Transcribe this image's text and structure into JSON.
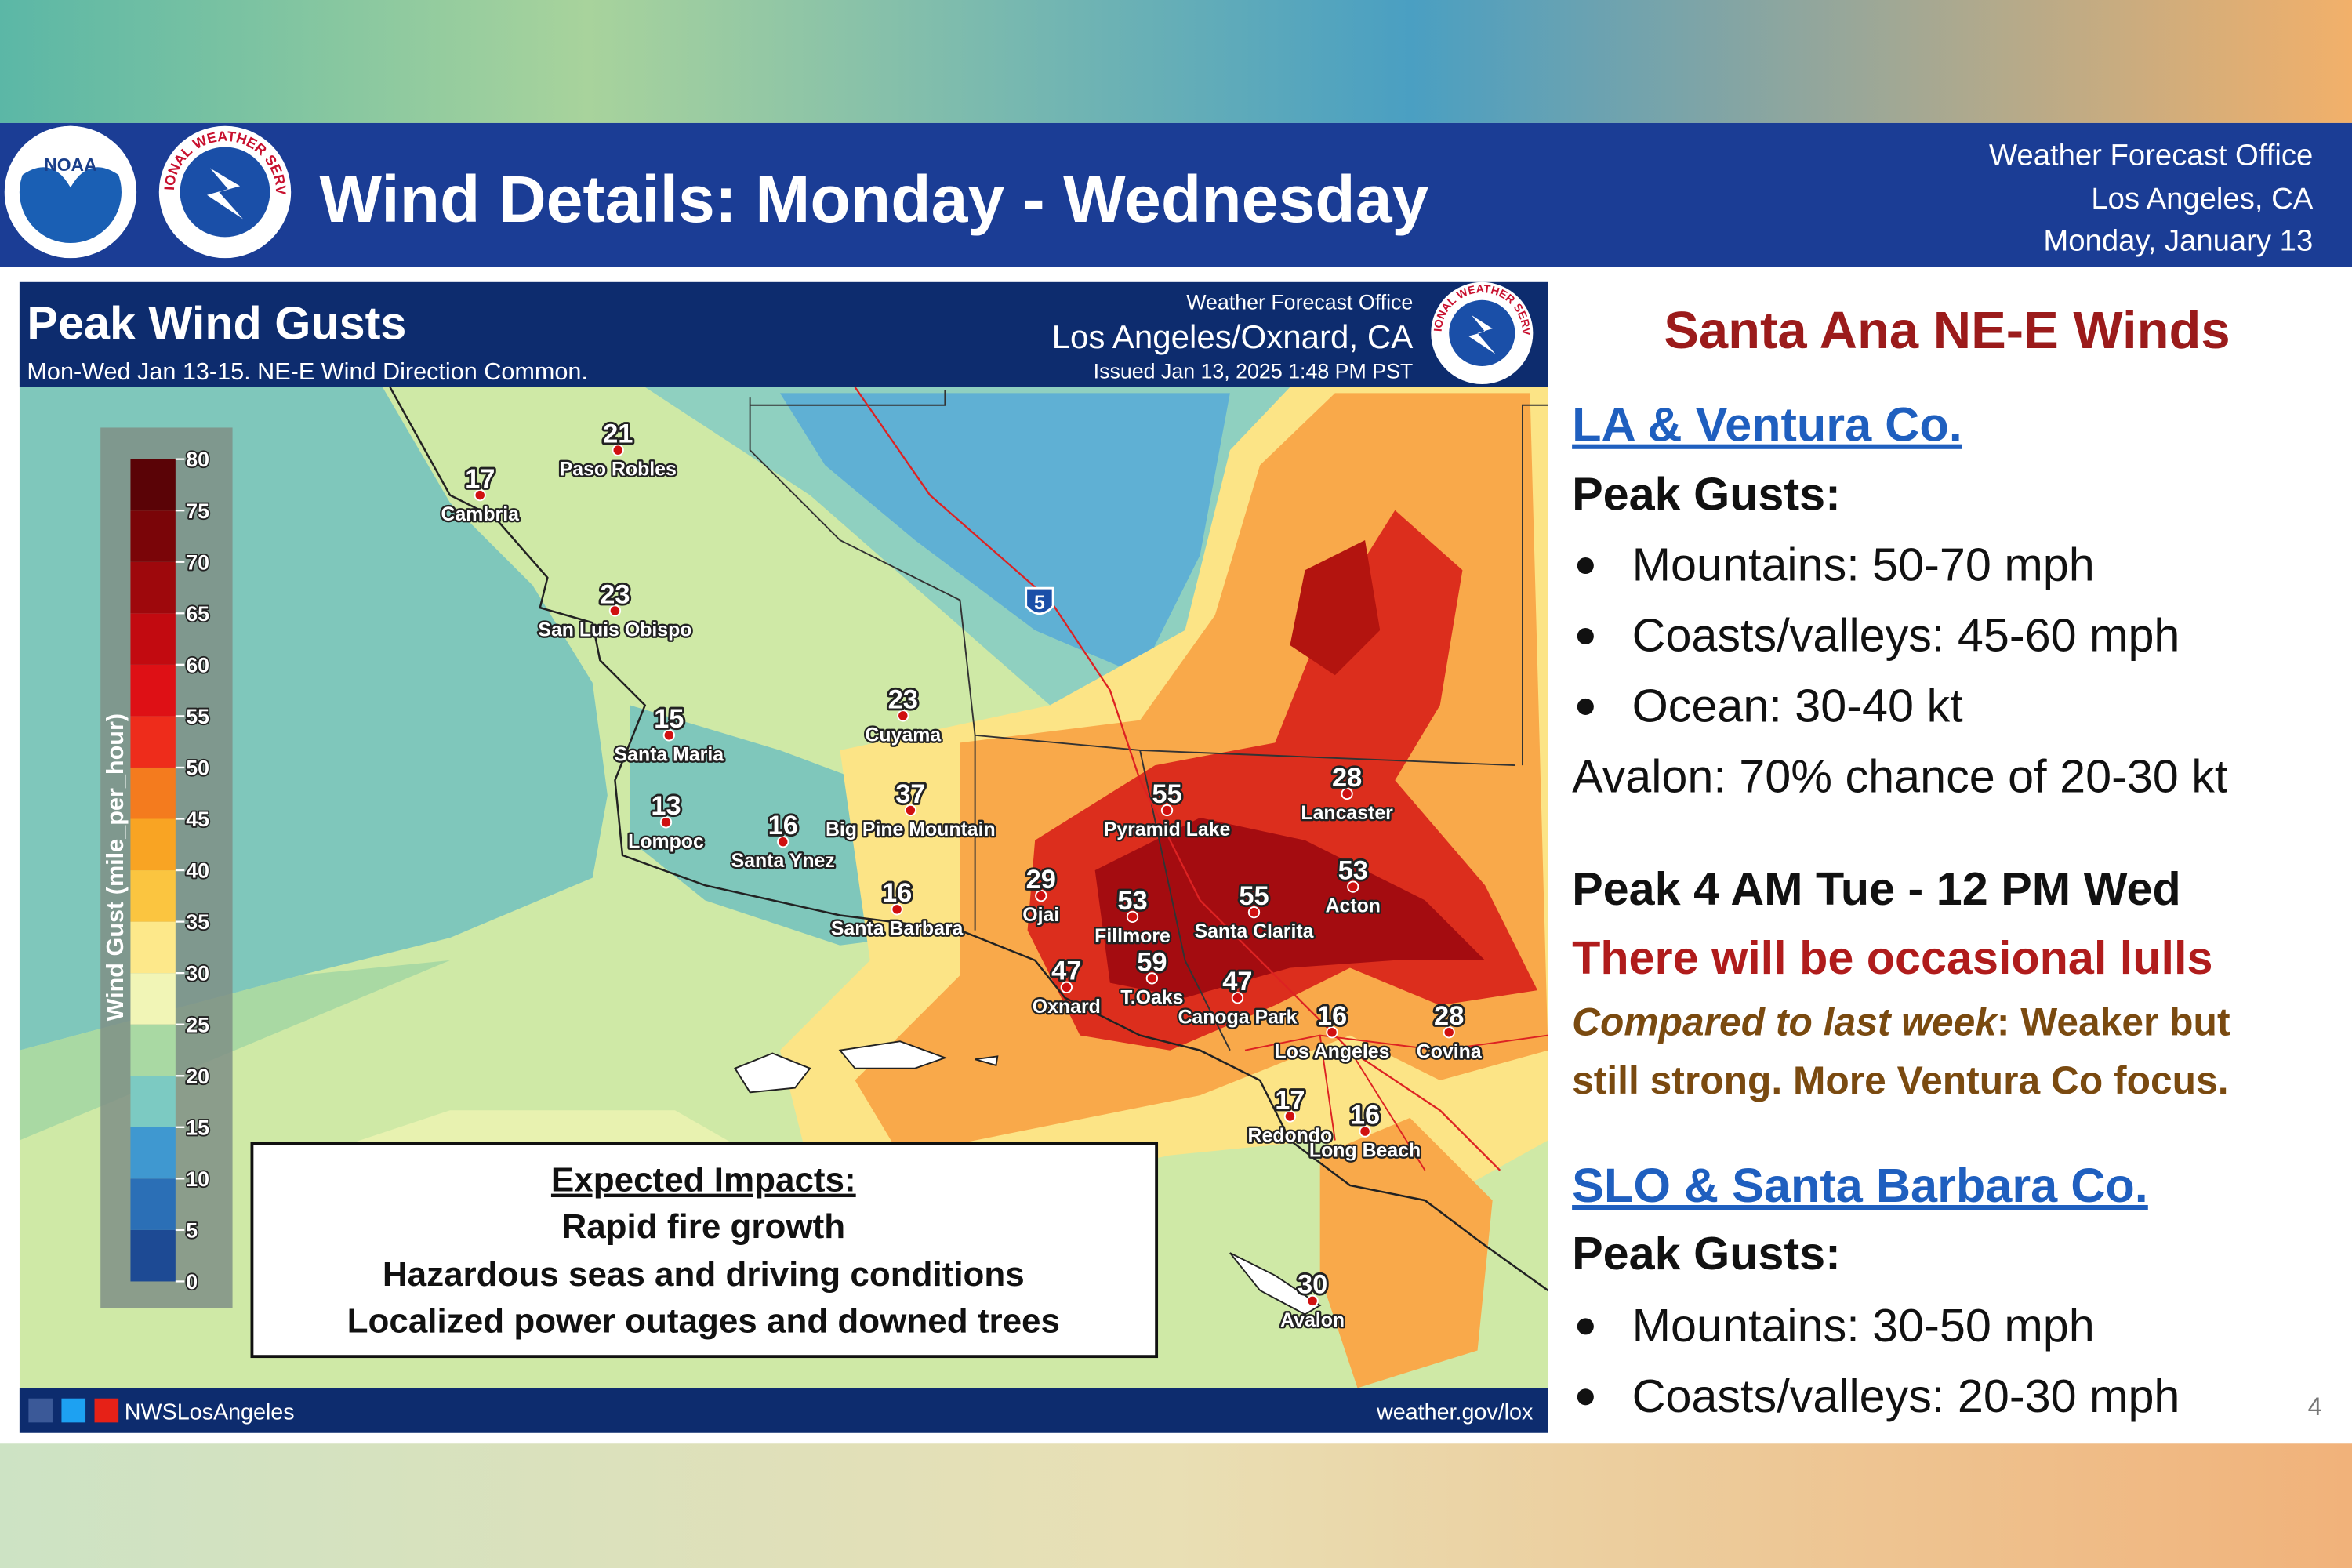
{
  "header": {
    "title": "Wind Details: Monday - Wednesday",
    "logo_text": "NOAA",
    "nws_logo_text": "NATIONAL WEATHER SERVICE",
    "office": [
      "Weather Forecast Office",
      "Los Angeles, CA",
      "Monday, January 13"
    ]
  },
  "map": {
    "title": "Peak Wind Gusts",
    "subtitle": "Mon-Wed Jan 13-15. NE-E Wind Direction Common.",
    "office": "Weather Forecast Office",
    "location": "Los Angeles/Oxnard, CA",
    "issued": "Issued Jan 13, 2025 1:48 PM PST",
    "legend": {
      "label": "Wind Gust (mile_per_hour)",
      "ticks": [
        0,
        5,
        10,
        15,
        20,
        25,
        30,
        35,
        40,
        45,
        50,
        55,
        60,
        65,
        70,
        75,
        80
      ],
      "colors": [
        "#1d4a94",
        "#2b6fb6",
        "#3f98d0",
        "#7ccac2",
        "#a9d9a3",
        "#f1f5b6",
        "#fde88a",
        "#fbc540",
        "#f9a423",
        "#f47b1e",
        "#ee2c1b",
        "#de1015",
        "#c20a10",
        "#9e080c",
        "#7a0508",
        "#5a0306"
      ]
    },
    "stations": [
      {
        "value": 21,
        "name": "Paso Robles"
      },
      {
        "value": 17,
        "name": "Cambria"
      },
      {
        "value": 23,
        "name": "San Luis Obispo"
      },
      {
        "value": 15,
        "name": "Santa Maria"
      },
      {
        "value": 13,
        "name": "Lompoc"
      },
      {
        "value": 16,
        "name": "Santa Ynez"
      },
      {
        "value": 23,
        "name": "Cuyama"
      },
      {
        "value": 37,
        "name": "Big Pine Mountain"
      },
      {
        "value": 16,
        "name": "Santa Barbara"
      },
      {
        "value": 29,
        "name": "Ojai"
      },
      {
        "value": 55,
        "name": "Pyramid Lake"
      },
      {
        "value": 28,
        "name": "Lancaster"
      },
      {
        "value": 53,
        "name": "Acton"
      },
      {
        "value": 53,
        "name": "Fillmore"
      },
      {
        "value": 55,
        "name": "Santa Clarita"
      },
      {
        "value": 47,
        "name": "Oxnard"
      },
      {
        "value": 59,
        "name": "T.Oaks"
      },
      {
        "value": 47,
        "name": "Canoga Park"
      },
      {
        "value": 16,
        "name": "Los Angeles"
      },
      {
        "value": 28,
        "name": "Covina"
      },
      {
        "value": 17,
        "name": "Redondo"
      },
      {
        "value": 16,
        "name": "Long Beach"
      },
      {
        "value": 30,
        "name": "Avalon"
      }
    ],
    "interstate": "5",
    "impacts": {
      "heading": "Expected Impacts:",
      "items": [
        "Rapid fire growth",
        "Hazardous seas and driving conditions",
        "Localized power outages and downed trees"
      ]
    },
    "footer": {
      "social": "NWSLosAngeles",
      "url": "weather.gov/lox"
    }
  },
  "panel": {
    "heading": "Santa Ana NE-E Winds",
    "la": {
      "title": "LA & Ventura Co.",
      "subheading": "Peak Gusts:",
      "bullets": [
        "Mountains: 50-70 mph",
        "Coasts/valleys: 45-60 mph",
        "Ocean: 30-40 kt"
      ],
      "note": "Avalon: 70% chance of 20-30 kt"
    },
    "timing": {
      "peak": "Peak 4 AM Tue - 12 PM Wed",
      "lulls": "There will be occasional lulls",
      "comparison_lead": "Compared to last week",
      "comparison": [
        ": Weaker but",
        "still strong. More Ventura Co focus."
      ]
    },
    "slo": {
      "title": "SLO & Santa Barbara Co.",
      "subheading": "Peak Gusts:",
      "bullets": [
        "Mountains: 30-50 mph",
        "Coasts/valleys: 20-30 mph"
      ]
    },
    "page_number": "4"
  }
}
